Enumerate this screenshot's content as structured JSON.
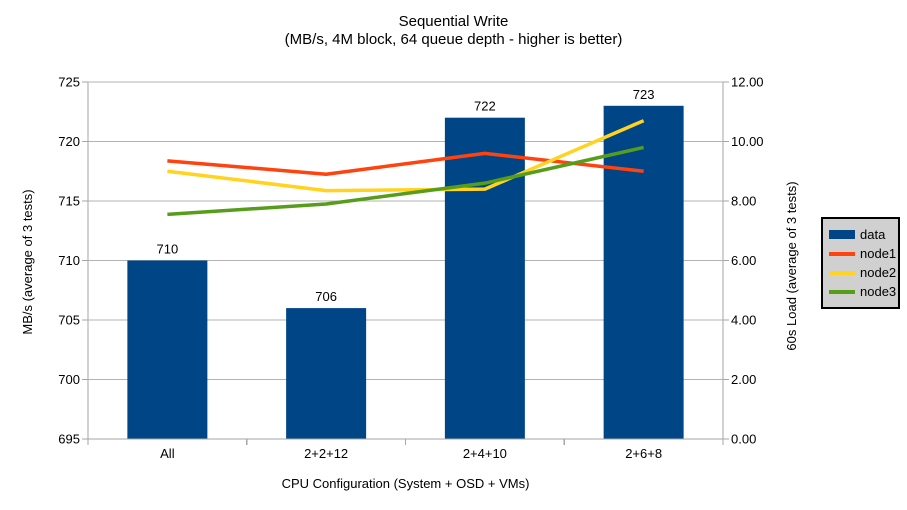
{
  "title": "Sequential Write",
  "subtitle": "(MB/s, 4M block, 64 queue depth - higher is better)",
  "chart_data": {
    "type": "bar",
    "subtype": "combo bar + line, dual y-axis",
    "categories": [
      "All",
      "2+2+12",
      "2+4+10",
      "2+6+8"
    ],
    "bar_series": {
      "name": "data",
      "axis": "left",
      "values": [
        710,
        706,
        722,
        723
      ],
      "data_labels": [
        "710",
        "706",
        "722",
        "723"
      ],
      "color": "#004586"
    },
    "line_series": [
      {
        "name": "node1",
        "axis": "right",
        "values": [
          9.35,
          8.9,
          9.6,
          9.0
        ],
        "color": "#ff420e"
      },
      {
        "name": "node2",
        "axis": "right",
        "values": [
          9.0,
          8.35,
          8.4,
          10.7
        ],
        "color": "#ffd320"
      },
      {
        "name": "node3",
        "axis": "right",
        "values": [
          7.55,
          7.9,
          8.6,
          9.8
        ],
        "color": "#579d1c"
      }
    ],
    "left_axis": {
      "title": "MB/s (average of 3 tests)",
      "min": 695,
      "max": 725,
      "tick_step": 5,
      "ticks": [
        "695",
        "700",
        "705",
        "710",
        "715",
        "720",
        "725"
      ]
    },
    "right_axis": {
      "title": "60s Load (average of 3 tests)",
      "min": 0,
      "max": 12,
      "tick_step": 2,
      "ticks": [
        "0.00",
        "2.00",
        "4.00",
        "6.00",
        "8.00",
        "10.00",
        "12.00"
      ]
    },
    "x_axis": {
      "title": "CPU Configuration (System + OSD + VMs)"
    },
    "grid": "horizontal major gridlines on",
    "legend": {
      "position": "right-middle, outside plot",
      "entries": [
        {
          "label": "data",
          "swatch": "rect",
          "color": "#004586"
        },
        {
          "label": "node1",
          "swatch": "line",
          "color": "#ff420e"
        },
        {
          "label": "node2",
          "swatch": "line",
          "color": "#ffd320"
        },
        {
          "label": "node3",
          "swatch": "line",
          "color": "#579d1c"
        }
      ]
    },
    "style": {
      "gridline_color": "#b3b3b3",
      "axis_color": "#a6a6a6",
      "legend_bg": "#d0d0d0",
      "text_color": "#000000",
      "background": "#ffffff"
    }
  }
}
